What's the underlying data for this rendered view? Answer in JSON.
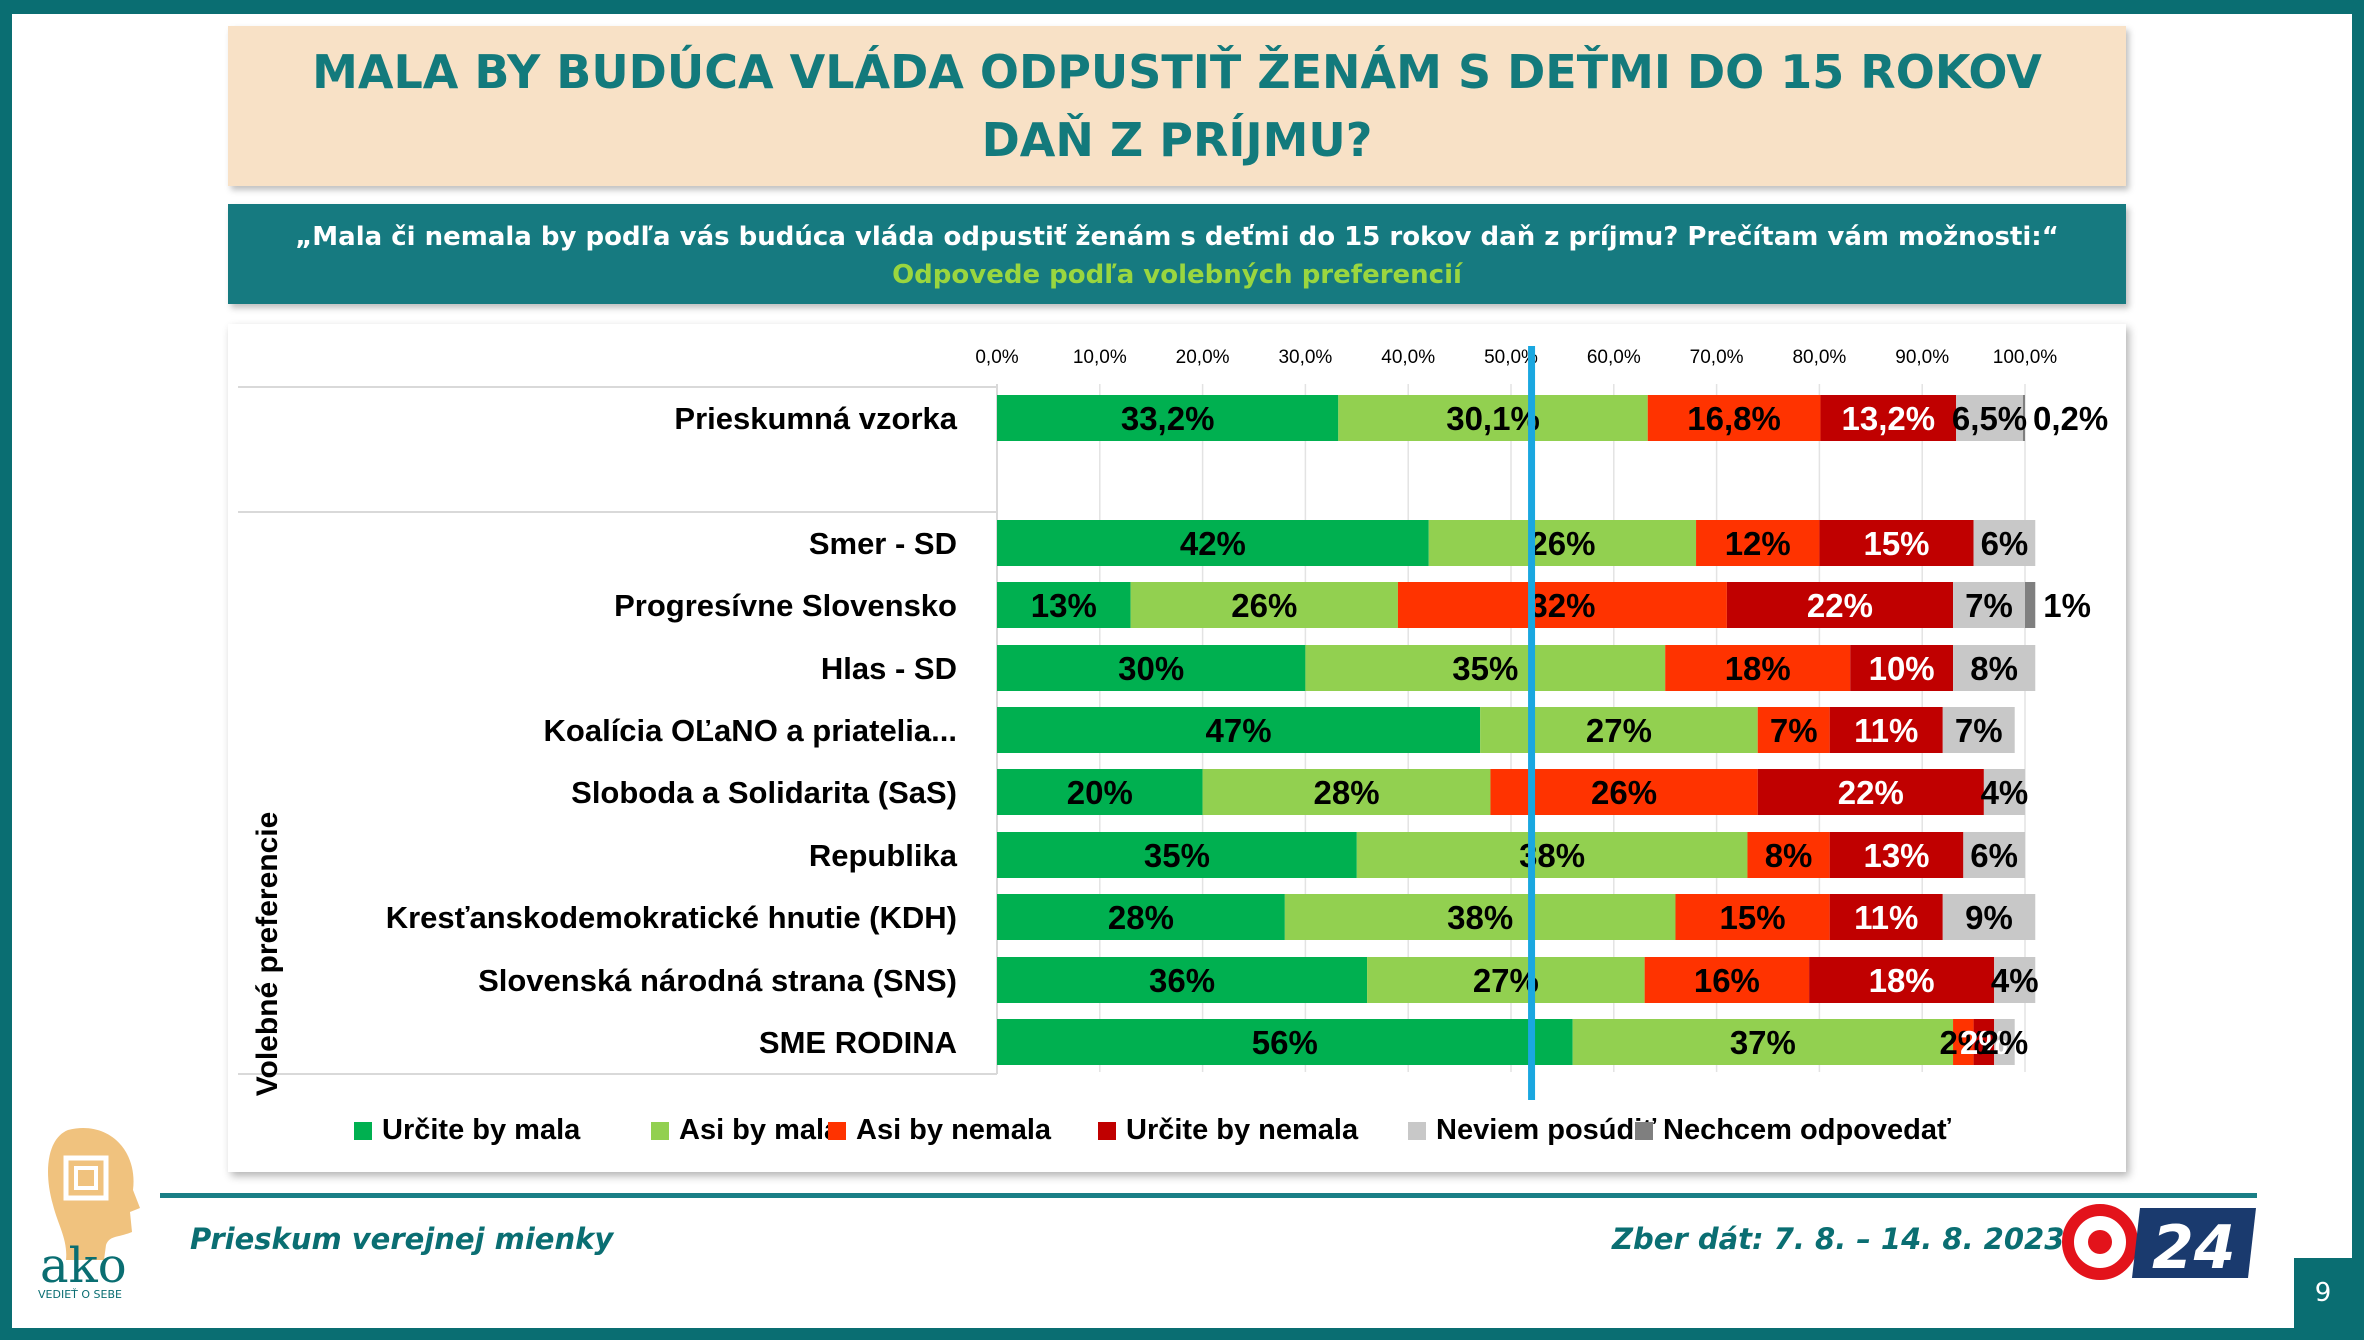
{
  "title": "MALA BY BUDÚCA VLÁDA ODPUSTIŤ ŽENÁM S DEŤMI DO 15 ROKOV DAŇ Z PRÍJMU?",
  "question": "„Mala či nemala by podľa vás budúca vláda odpustiť ženám s deťmi do 15 rokov daň z príjmu? Prečítam vám možnosti:“",
  "subquestion": "Odpovede podľa volebných preferencií",
  "footer": {
    "left": "Prieskum verejnej mienky",
    "right": "Zber dát: 7. 8. – 14. 8. 2023",
    "page": "9",
    "logo_text": "ako",
    "logo_tagline": "VEDIEŤ O SEBE",
    "tv_logo_text": "24"
  },
  "colors": {
    "urcite_mala": "#00b050",
    "asi_mala": "#92d050",
    "asi_nemala": "#ff3300",
    "urcite_nemala": "#c00000",
    "neviem": "#c8c8c8",
    "nechcem": "#7f7f7f",
    "teal": "#0a6e72",
    "marker_line": "#1aa7e0"
  },
  "chart_data": {
    "type": "bar",
    "orientation": "horizontal",
    "stacked": true,
    "xlim": [
      0,
      100
    ],
    "x_ticks": [
      "0,0%",
      "10,0%",
      "20,0%",
      "30,0%",
      "40,0%",
      "50,0%",
      "60,0%",
      "70,0%",
      "80,0%",
      "90,0%",
      "100,0%"
    ],
    "y_axis_label": "Volebné preferencie",
    "legend_position": "bottom",
    "marker_line_at": 52,
    "series_names": [
      "Určite by mala",
      "Asi by mala",
      "Asi by nemala",
      "Určite by nemala",
      "Neviem posúdiť",
      "Nechcem odpovedať"
    ],
    "rows": [
      {
        "label": "Prieskumná vzorka",
        "values": [
          33.2,
          30.1,
          16.8,
          13.2,
          6.5,
          0.2
        ],
        "labels": [
          "33,2%",
          "30,1%",
          "16,8%",
          "13,2%",
          "6,5%",
          "0,2%"
        ]
      },
      {
        "label": "Smer - SD",
        "values": [
          42,
          26,
          12,
          15,
          6,
          0
        ],
        "labels": [
          "42%",
          "26%",
          "12%",
          "15%",
          "6%",
          ""
        ]
      },
      {
        "label": "Progresívne Slovensko",
        "values": [
          13,
          26,
          32,
          22,
          7,
          1
        ],
        "labels": [
          "13%",
          "26%",
          "32%",
          "22%",
          "7%",
          "1%"
        ]
      },
      {
        "label": "Hlas - SD",
        "values": [
          30,
          35,
          18,
          10,
          8,
          0
        ],
        "labels": [
          "30%",
          "35%",
          "18%",
          "10%",
          "8%",
          ""
        ]
      },
      {
        "label": "Koalícia OĽaNO a priatelia...",
        "values": [
          47,
          27,
          7,
          11,
          7,
          0
        ],
        "labels": [
          "47%",
          "27%",
          "7%",
          "11%",
          "7%",
          ""
        ]
      },
      {
        "label": "Sloboda a Solidarita (SaS)",
        "values": [
          20,
          28,
          26,
          22,
          4,
          0
        ],
        "labels": [
          "20%",
          "28%",
          "26%",
          "22%",
          "4%",
          ""
        ]
      },
      {
        "label": "Republika",
        "values": [
          35,
          38,
          8,
          13,
          6,
          0
        ],
        "labels": [
          "35%",
          "38%",
          "8%",
          "13%",
          "6%",
          ""
        ]
      },
      {
        "label": "Kresťanskodemokratické hnutie (KDH)",
        "values": [
          28,
          38,
          15,
          11,
          9,
          0
        ],
        "labels": [
          "28%",
          "38%",
          "15%",
          "11%",
          "9%",
          ""
        ]
      },
      {
        "label": "Slovenská národná strana (SNS)",
        "values": [
          36,
          27,
          16,
          18,
          4,
          0
        ],
        "labels": [
          "36%",
          "27%",
          "16%",
          "18%",
          "4%",
          ""
        ]
      },
      {
        "label": "SME RODINA",
        "values": [
          56,
          37,
          2,
          2,
          2,
          0
        ],
        "labels": [
          "56%",
          "37%",
          "2%",
          "2%",
          "2%",
          ""
        ]
      }
    ]
  }
}
